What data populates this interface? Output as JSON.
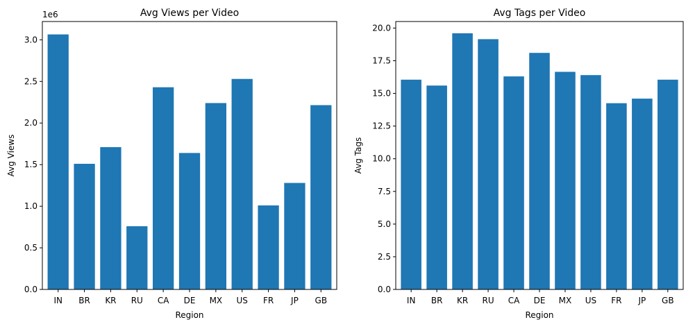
{
  "figure": {
    "background": "#ffffff"
  },
  "chart_data": [
    {
      "type": "bar",
      "title": "Avg Views per Video",
      "xlabel": "Region",
      "ylabel": "Avg Views",
      "offset_label": "1e6",
      "categories": [
        "IN",
        "BR",
        "KR",
        "RU",
        "CA",
        "DE",
        "MX",
        "US",
        "FR",
        "JP",
        "GB"
      ],
      "values": [
        3065000,
        1510000,
        1710000,
        760000,
        2430000,
        1640000,
        2240000,
        2530000,
        1010000,
        1280000,
        2215000
      ],
      "ylim": [
        0,
        3220000
      ],
      "yticks": [
        0,
        500000,
        1000000,
        1500000,
        2000000,
        2500000,
        3000000
      ],
      "ytick_labels": [
        "0.0",
        "0.5",
        "1.0",
        "1.5",
        "2.0",
        "2.5",
        "3.0"
      ],
      "color": "#1f77b4",
      "grid": false,
      "legend": false
    },
    {
      "type": "bar",
      "title": "Avg Tags per Video",
      "xlabel": "Region",
      "ylabel": "Avg Tags",
      "categories": [
        "IN",
        "BR",
        "KR",
        "RU",
        "CA",
        "DE",
        "MX",
        "US",
        "FR",
        "JP",
        "GB"
      ],
      "values": [
        16.05,
        15.6,
        19.6,
        19.15,
        16.3,
        18.1,
        16.65,
        16.4,
        14.25,
        14.6,
        16.05
      ],
      "ylim": [
        0,
        20.5
      ],
      "yticks": [
        0,
        2.5,
        5,
        7.5,
        10,
        12.5,
        15,
        17.5,
        20
      ],
      "ytick_labels": [
        "0.0",
        "2.5",
        "5.0",
        "7.5",
        "10.0",
        "12.5",
        "15.0",
        "17.5",
        "20.0"
      ],
      "color": "#1f77b4",
      "grid": false,
      "legend": false
    }
  ]
}
